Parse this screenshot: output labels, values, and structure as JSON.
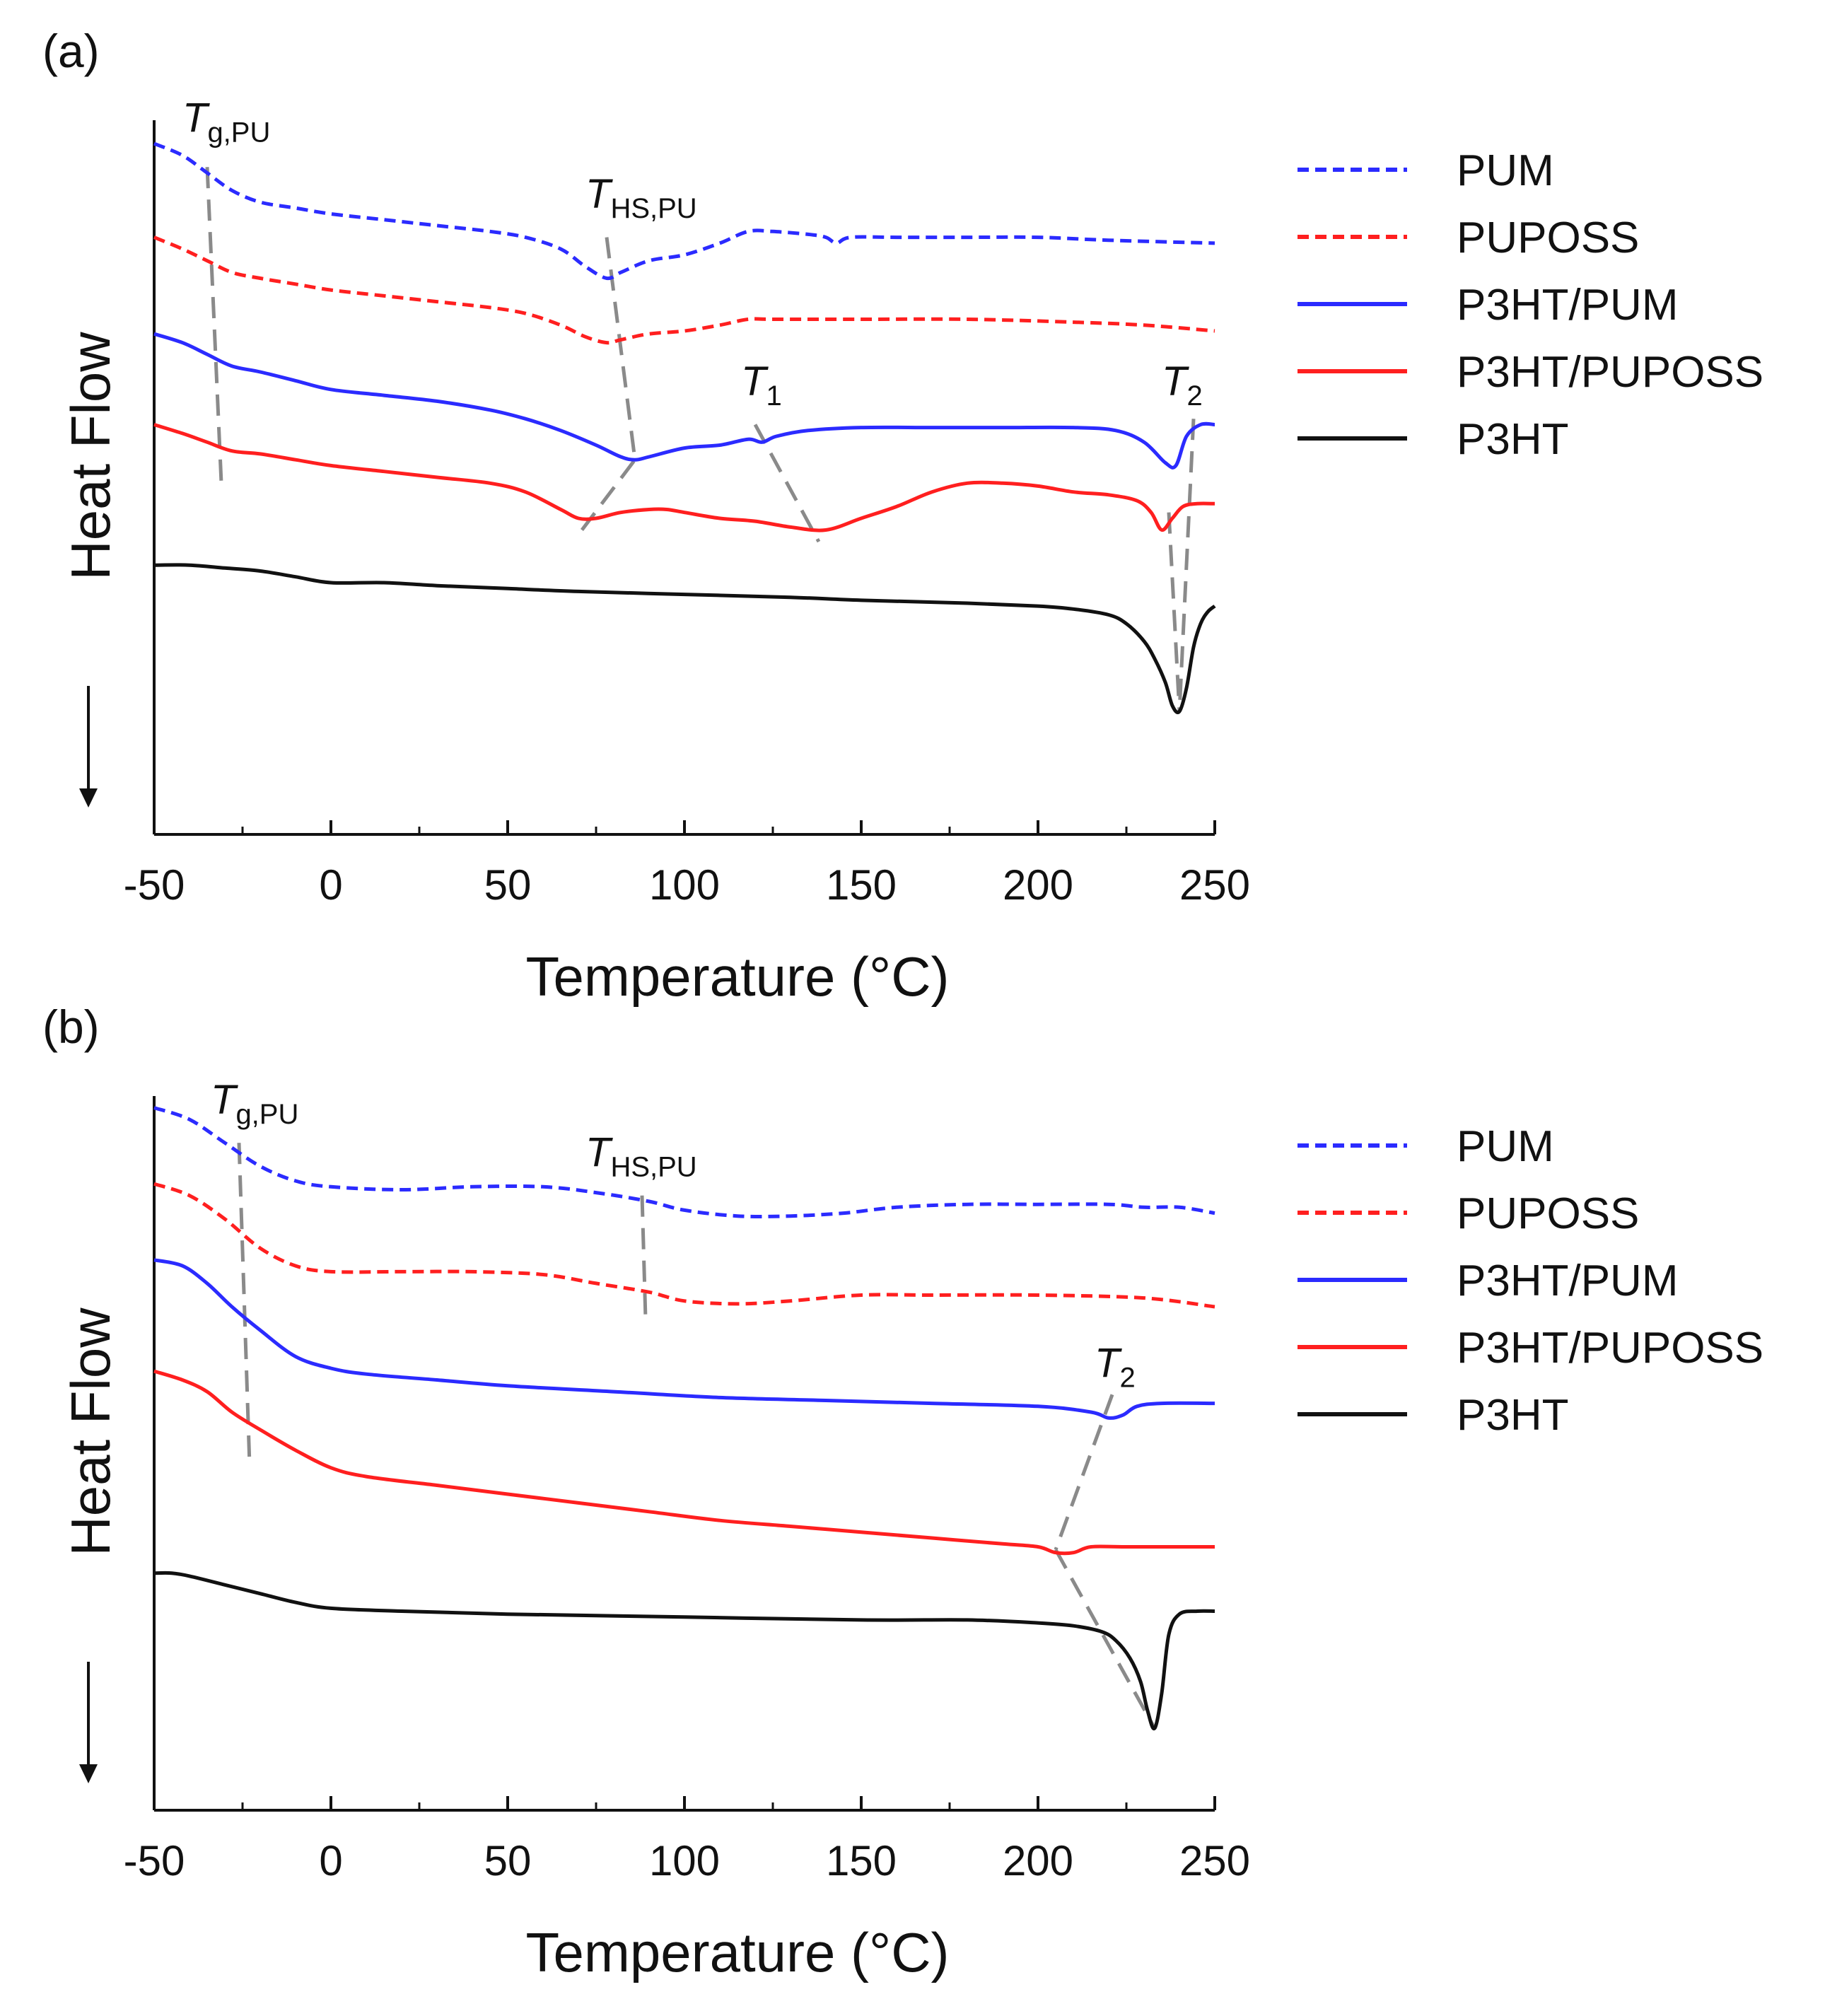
{
  "figure": {
    "label_font": "sans"
  },
  "chart_data": [
    {
      "panel_label": "(a)",
      "type": "line",
      "xlabel": "Temperature (°C)",
      "ylabel": "Heat Flow",
      "xlim": [
        -50,
        250
      ],
      "xticks": [
        -50,
        0,
        50,
        100,
        150,
        200,
        250
      ],
      "xticklabels": [
        "-50",
        "0",
        "50",
        "100",
        "150",
        "200",
        "250"
      ],
      "yunits": "arbitrary (endo down)",
      "ylim": [
        -10,
        112
      ],
      "legend": {
        "placement": "right",
        "entries": [
          {
            "label": "PUM",
            "color": "#2b2bff",
            "dash": true
          },
          {
            "label": "PUPOSS",
            "color": "#ff1f1f",
            "dash": true
          },
          {
            "label": "P3HT/PUM",
            "color": "#2b2bff",
            "dash": false
          },
          {
            "label": "P3HT/PUPOSS",
            "color": "#ff1f1f",
            "dash": false
          },
          {
            "label": "P3HT",
            "color": "#111111",
            "dash": false
          }
        ]
      },
      "series": [
        {
          "name": "PUM",
          "color": "#2b2bff",
          "dash": true,
          "x": [
            -50,
            -42,
            -35,
            -28,
            -20,
            -10,
            0,
            15,
            30,
            45,
            55,
            65,
            72,
            78,
            82,
            90,
            100,
            110,
            118,
            125,
            135,
            140,
            143,
            147,
            160,
            180,
            200,
            220,
            250
          ],
          "y": [
            108,
            106,
            103,
            100,
            98,
            97,
            96,
            95,
            94,
            93,
            92,
            90,
            87,
            85,
            86,
            88,
            89,
            91,
            93,
            93,
            92.5,
            92,
            91,
            92,
            92,
            92,
            92,
            91.5,
            91
          ]
        },
        {
          "name": "PUPOSS",
          "color": "#ff1f1f",
          "dash": true,
          "x": [
            -50,
            -42,
            -35,
            -28,
            -20,
            -10,
            0,
            15,
            30,
            45,
            55,
            65,
            72,
            78,
            82,
            90,
            100,
            110,
            118,
            125,
            150,
            180,
            210,
            230,
            250
          ],
          "y": [
            92,
            90,
            88,
            86,
            85,
            84,
            83,
            82,
            81,
            80,
            79,
            77,
            75,
            74,
            74.5,
            75.5,
            76,
            77,
            78,
            78,
            78,
            78,
            77.5,
            77,
            76
          ]
        },
        {
          "name": "P3HT/PUM",
          "color": "#2b2bff",
          "dash": false,
          "x": [
            -50,
            -42,
            -35,
            -28,
            -20,
            -10,
            0,
            15,
            30,
            45,
            55,
            65,
            75,
            82,
            86,
            90,
            100,
            110,
            118,
            122,
            126,
            135,
            150,
            170,
            190,
            210,
            222,
            230,
            236,
            239,
            242,
            246,
            250
          ],
          "y": [
            75.5,
            74,
            72,
            70,
            69,
            67.5,
            66,
            65,
            64,
            62.5,
            61,
            59,
            56.5,
            54.5,
            54,
            54.5,
            56,
            56.5,
            57.5,
            57,
            58,
            59,
            59.5,
            59.5,
            59.5,
            59.5,
            59,
            57,
            53.5,
            53,
            58,
            60,
            60
          ]
        },
        {
          "name": "P3HT/PUPOSS",
          "color": "#ff1f1f",
          "dash": false,
          "x": [
            -50,
            -42,
            -35,
            -28,
            -20,
            -10,
            0,
            15,
            30,
            45,
            55,
            65,
            70,
            75,
            82,
            90,
            95,
            100,
            110,
            120,
            130,
            140,
            150,
            160,
            170,
            180,
            190,
            200,
            210,
            220,
            228,
            232,
            235,
            238,
            241,
            245,
            250
          ],
          "y": [
            60,
            58.5,
            57,
            55.5,
            55,
            54,
            53,
            52,
            51,
            50,
            48.5,
            45.5,
            44,
            44,
            45,
            45.5,
            45.5,
            45,
            44,
            43.5,
            42.5,
            42,
            44,
            46,
            48.5,
            50,
            50,
            49.5,
            48.5,
            48,
            47,
            45,
            42,
            44,
            46,
            46.5,
            46.5
          ]
        },
        {
          "name": "P3HT",
          "color": "#111111",
          "dash": false,
          "x": [
            -50,
            -40,
            -30,
            -20,
            -10,
            0,
            15,
            30,
            50,
            70,
            100,
            130,
            150,
            180,
            200,
            210,
            220,
            225,
            230,
            233,
            236,
            238,
            240,
            242,
            244,
            246,
            248,
            250
          ],
          "y": [
            36,
            36,
            35.5,
            35,
            34,
            33,
            33,
            32.5,
            32,
            31.5,
            31,
            30.5,
            30,
            29.5,
            29,
            28.5,
            27.5,
            26,
            23,
            20,
            16,
            12,
            11,
            15,
            22,
            26,
            28,
            29
          ]
        }
      ],
      "annotations": [
        {
          "text": "T",
          "sub": "g,PU",
          "x1": -35,
          "y1": 104,
          "x2": -31,
          "y2": 50,
          "label_x": -42,
          "label_y": 110
        },
        {
          "text": "T",
          "sub": "HS,PU",
          "x1": 78,
          "y1": 92,
          "x2": 86,
          "y2": 54,
          "label_x": 72,
          "label_y": 97
        },
        {
          "text": "",
          "sub": "",
          "x1": 71,
          "y1": 42,
          "x2": 86,
          "y2": 54
        },
        {
          "text": "T",
          "sub": "1",
          "x1": 120,
          "y1": 60,
          "x2": 138,
          "y2": 40,
          "label_x": 116,
          "label_y": 65
        },
        {
          "text": "T",
          "sub": "2",
          "x1": 244,
          "y1": 61,
          "x2": 240,
          "y2": 11,
          "label_x": 235,
          "label_y": 65
        },
        {
          "text": "",
          "sub": "",
          "x1": 237,
          "y1": 45,
          "x2": 240,
          "y2": 11
        }
      ]
    },
    {
      "panel_label": "(b)",
      "type": "line",
      "xlabel": "Temperature (°C)",
      "ylabel": "Heat Flow",
      "xlim": [
        -50,
        250
      ],
      "xticks": [
        -50,
        0,
        50,
        100,
        150,
        200,
        250
      ],
      "xticklabels": [
        "-50",
        "0",
        "50",
        "100",
        "150",
        "200",
        "250"
      ],
      "yunits": "arbitrary (endo down)",
      "ylim": [
        -10,
        112
      ],
      "legend": {
        "placement": "right",
        "entries": [
          {
            "label": "PUM",
            "color": "#2b2bff",
            "dash": true
          },
          {
            "label": "PUPOSS",
            "color": "#ff1f1f",
            "dash": true
          },
          {
            "label": "P3HT/PUM",
            "color": "#2b2bff",
            "dash": false
          },
          {
            "label": "P3HT/PUPOSS",
            "color": "#ff1f1f",
            "dash": false
          },
          {
            "label": "P3HT",
            "color": "#111111",
            "dash": false
          }
        ]
      },
      "series": [
        {
          "name": "PUM",
          "color": "#2b2bff",
          "dash": true,
          "x": [
            -50,
            -40,
            -30,
            -20,
            -10,
            0,
            20,
            40,
            60,
            75,
            90,
            100,
            115,
            130,
            145,
            160,
            180,
            200,
            220,
            230,
            240,
            250
          ],
          "y": [
            110,
            108,
            104,
            100,
            97.5,
            96.5,
            96,
            96.5,
            96.5,
            95.5,
            94,
            92.5,
            91.5,
            91.5,
            92,
            93,
            93.5,
            93.5,
            93.5,
            93,
            93,
            92
          ]
        },
        {
          "name": "PUPOSS",
          "color": "#ff1f1f",
          "dash": true,
          "x": [
            -50,
            -40,
            -30,
            -20,
            -10,
            0,
            20,
            40,
            60,
            75,
            90,
            100,
            115,
            130,
            150,
            170,
            200,
            230,
            250
          ],
          "y": [
            97,
            95,
            91,
            86,
            83,
            82,
            82,
            82,
            81.5,
            80,
            78.5,
            77,
            76.5,
            77,
            78,
            78,
            78,
            77.5,
            76
          ]
        },
        {
          "name": "P3HT/PUM",
          "color": "#2b2bff",
          "dash": false,
          "x": [
            -50,
            -42,
            -35,
            -28,
            -20,
            -10,
            0,
            10,
            30,
            50,
            80,
            110,
            140,
            170,
            200,
            215,
            220,
            224,
            228,
            235,
            250
          ],
          "y": [
            84,
            83,
            80,
            76,
            72,
            67.5,
            65.5,
            64.5,
            63.5,
            62.5,
            61.5,
            60.5,
            60,
            59.5,
            59,
            58,
            57,
            57.5,
            59,
            59.5,
            59.5
          ]
        },
        {
          "name": "P3HT/PUPOSS",
          "color": "#ff1f1f",
          "dash": false,
          "x": [
            -50,
            -42,
            -35,
            -28,
            -20,
            -10,
            0,
            10,
            30,
            50,
            70,
            90,
            110,
            130,
            150,
            170,
            190,
            200,
            205,
            210,
            215,
            225,
            250
          ],
          "y": [
            65,
            63.5,
            61.5,
            58,
            55,
            51.5,
            48.5,
            47,
            45.5,
            44,
            42.5,
            41,
            39.5,
            38.5,
            37.5,
            36.5,
            35.5,
            35,
            34,
            34,
            35,
            35,
            35
          ]
        },
        {
          "name": "P3HT",
          "color": "#111111",
          "dash": false,
          "x": [
            -50,
            -45,
            -40,
            -30,
            -20,
            -10,
            0,
            20,
            50,
            100,
            150,
            180,
            200,
            210,
            218,
            222,
            226,
            229,
            231,
            233,
            235,
            237,
            240,
            245,
            250
          ],
          "y": [
            30.5,
            30.5,
            30,
            28.5,
            27,
            25.5,
            24.5,
            24,
            23.5,
            23,
            22.5,
            22.5,
            22,
            21.5,
            20.5,
            19,
            16,
            12,
            7,
            4,
            10,
            20,
            23.5,
            24,
            24
          ]
        }
      ],
      "annotations": [
        {
          "text": "T",
          "sub": "g,PU",
          "x1": -26,
          "y1": 104,
          "x2": -23,
          "y2": 49,
          "label_x": -34,
          "label_y": 109
        },
        {
          "text": "T",
          "sub": "HS,PU",
          "x1": 88,
          "y1": 95,
          "x2": 89,
          "y2": 74,
          "label_x": 72,
          "label_y": 100
        },
        {
          "text": "T",
          "sub": "2",
          "x1": 221,
          "y1": 61,
          "x2": 205,
          "y2": 34.5,
          "label_x": 216,
          "label_y": 64
        },
        {
          "text": "",
          "sub": "",
          "x1": 205,
          "y1": 34.5,
          "x2": 233,
          "y2": 4
        }
      ]
    }
  ]
}
